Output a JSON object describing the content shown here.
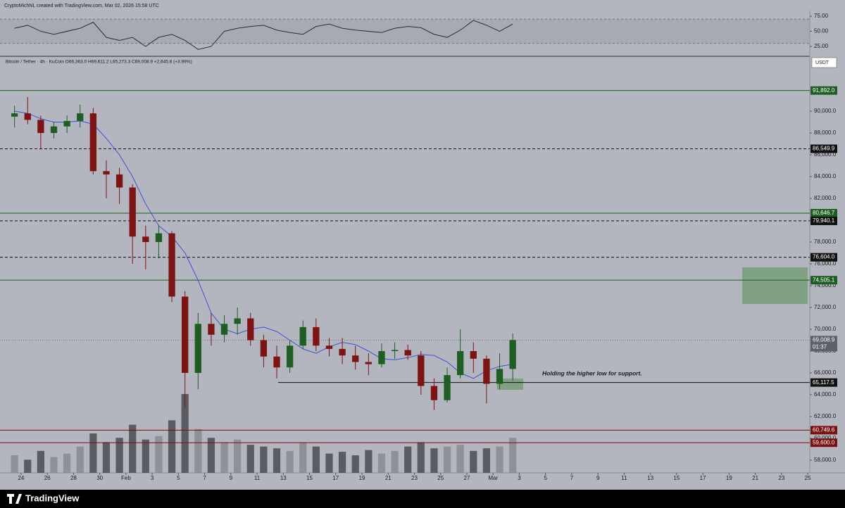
{
  "header": "CryptoMichNL created with TradingView.com, Mar 02, 2026 15:58 UTC",
  "footer": "TradingView",
  "chart_data": {
    "type": "candlestick",
    "legend": "Bitcoin / Tether · 4h · KuCoin  O66,363.0  H69,611.2  L65,273.3  C69,008.9  +2,645.8 (+3.99%)",
    "currency": "USDT",
    "annotation": "Holding the higher low for support.",
    "up_color": "#1e5e23",
    "down_color": "#7d1414",
    "x": [
      -0.5,
      0.5,
      1.5,
      2.5,
      3.5,
      4.5,
      5.5,
      6.5,
      7.5,
      8.5,
      9.5,
      10.5,
      11.5,
      12.5,
      13.5,
      14.5,
      15.5,
      16.5,
      17.5,
      18.5,
      19.5,
      20.5,
      21.5,
      22.5,
      23.5,
      24.5,
      25.5,
      26.5,
      27.5,
      28.5,
      29.5,
      30.5,
      31.5,
      32.5,
      33.5,
      34.5,
      35.5,
      36.5,
      37.5
    ],
    "open": [
      89500,
      89800,
      89200,
      88000,
      88600,
      89100,
      89800,
      84500,
      84200,
      83000,
      78500,
      78000,
      78800,
      73000,
      66000,
      70500,
      69500,
      70500,
      71000,
      69000,
      67500,
      66500,
      68500,
      70200,
      68500,
      68200,
      67600,
      67000,
      66800,
      68000,
      68100,
      67600,
      64800,
      63500,
      65800,
      68000,
      67300,
      65000,
      66363.0
    ],
    "high": [
      90500,
      91300,
      89600,
      89000,
      89600,
      90600,
      90300,
      85500,
      84800,
      83300,
      79500,
      79500,
      79000,
      73500,
      71500,
      71500,
      71300,
      72000,
      71500,
      69500,
      68500,
      69000,
      70800,
      71000,
      69200,
      69200,
      68500,
      67800,
      68700,
      68800,
      68600,
      68000,
      65500,
      66500,
      70000,
      68800,
      67600,
      67800,
      69611.2
    ],
    "low": [
      88500,
      88800,
      86500,
      87500,
      88000,
      88500,
      84200,
      82000,
      81500,
      76000,
      75500,
      76500,
      72500,
      62800,
      64500,
      68500,
      68800,
      69500,
      68500,
      66500,
      65500,
      66000,
      68200,
      68000,
      67500,
      66800,
      66300,
      65800,
      66500,
      67300,
      67200,
      64000,
      62600,
      63300,
      65500,
      66000,
      63200,
      64500,
      65273.3
    ],
    "close": [
      89800,
      89200,
      88000,
      88600,
      89100,
      89800,
      84500,
      84200,
      83000,
      78500,
      78000,
      78800,
      73000,
      66000,
      70500,
      69500,
      70500,
      71000,
      69000,
      67500,
      66500,
      68500,
      70200,
      68500,
      68200,
      67600,
      67000,
      66800,
      68000,
      68100,
      67600,
      64800,
      63500,
      65800,
      68000,
      67300,
      65000,
      66363.0,
      69008.9
    ],
    "volume": [
      20,
      15,
      25,
      18,
      22,
      30,
      45,
      35,
      40,
      55,
      38,
      42,
      60,
      90,
      50,
      40,
      35,
      38,
      32,
      30,
      28,
      25,
      35,
      30,
      22,
      24,
      20,
      26,
      22,
      25,
      30,
      35,
      28,
      30,
      32,
      25,
      28,
      30,
      40
    ],
    "volume_up_color": "#85888f",
    "volume_down_color": "#45464b",
    "ma": {
      "color": "#3f4fd6",
      "values": [
        90000,
        89800,
        89300,
        89000,
        89000,
        89100,
        88800,
        87500,
        86000,
        84000,
        81500,
        79500,
        78500,
        77000,
        74500,
        71500,
        70000,
        69600,
        70000,
        70200,
        69800,
        69000,
        68200,
        67800,
        68400,
        68800,
        68600,
        68000,
        67300,
        67200,
        67400,
        67700,
        67600,
        67000,
        66000,
        65500,
        66200,
        66600,
        66800
      ]
    },
    "rsi": {
      "color": "#1f1f23",
      "values": [
        55,
        60,
        50,
        45,
        50,
        55,
        65,
        40,
        35,
        40,
        25,
        40,
        45,
        35,
        20,
        25,
        50,
        55,
        58,
        60,
        52,
        48,
        45,
        58,
        62,
        55,
        52,
        50,
        48,
        55,
        58,
        56,
        45,
        40,
        52,
        68,
        60,
        50,
        62
      ],
      "ylim": [
        8.7,
        84.3
      ],
      "bands": [
        30,
        70
      ],
      "yticks": [
        {
          "value": 75,
          "label": "75.00"
        },
        {
          "value": 50,
          "label": "50.00"
        },
        {
          "value": 25,
          "label": "25.00"
        }
      ]
    },
    "levels": {
      "values": [
        91892.0,
        86549.9,
        80646.7,
        79940.1,
        76604.0,
        74505.1,
        65117.5,
        60749.6,
        59600.0
      ],
      "value_labels": [
        "91,892.0",
        "86,549.9",
        "80,646.7",
        "79,940.1",
        "76,604.0",
        "74,505.1",
        "65,117.5",
        "60,749.6",
        "59,600.0"
      ],
      "colors": [
        "#1f5e22",
        "#111111",
        "#1f5e22",
        "#111111",
        "#111111",
        "#1f5e22",
        "#111111",
        "#7a1010",
        "#7a1010"
      ],
      "styles": [
        "solid",
        "dashed",
        "solid",
        "dashed",
        "dashed",
        "solid",
        "solid",
        "solid",
        "solid"
      ],
      "starts": [
        null,
        null,
        null,
        null,
        null,
        null,
        19.6,
        null,
        null
      ]
    },
    "last": {
      "value": 69008.9,
      "label": "69,008.9",
      "countdown": "01:37"
    },
    "zones": [
      {
        "top": 75677,
        "bottom": 72323,
        "x0": 55.0,
        "x1": 60.0,
        "color": "#6f9a6f"
      },
      {
        "top": 65484,
        "bottom": 64452,
        "x0": 36.3,
        "x1": 38.3,
        "color": "#6f9a6f"
      }
    ],
    "xlim": [
      -1.34,
      60.05
    ],
    "ylim": [
      56839,
      95032
    ],
    "yticks": [
      {
        "value": 58000,
        "label": "58,000.0"
      },
      {
        "value": 60000,
        "label": "60,000.0"
      },
      {
        "value": 62000,
        "label": "62,000.0"
      },
      {
        "value": 64000,
        "label": "64,000.0"
      },
      {
        "value": 66000,
        "label": "66,000.0"
      },
      {
        "value": 68000,
        "label": "68,000.0"
      },
      {
        "value": 70000,
        "label": "70,000.0"
      },
      {
        "value": 72000,
        "label": "72,000.0"
      },
      {
        "value": 74000,
        "label": "74,000.0"
      },
      {
        "value": 76000,
        "label": "76,000.0"
      },
      {
        "value": 78000,
        "label": "78,000.0"
      },
      {
        "value": 80000,
        "label": "80,000.0"
      },
      {
        "value": 82000,
        "label": "82,000.0"
      },
      {
        "value": 84000,
        "label": "84,000.0"
      },
      {
        "value": 86000,
        "label": "86,000.0"
      },
      {
        "value": 88000,
        "label": "88,000.0"
      },
      {
        "value": 90000,
        "label": "90,000.0"
      }
    ],
    "xticks": [
      {
        "value": 0,
        "label": "24"
      },
      {
        "value": 2,
        "label": "26"
      },
      {
        "value": 4,
        "label": "28"
      },
      {
        "value": 6,
        "label": "30"
      },
      {
        "value": 8,
        "label": "Feb"
      },
      {
        "value": 10,
        "label": "3"
      },
      {
        "value": 12,
        "label": "5"
      },
      {
        "value": 14,
        "label": "7"
      },
      {
        "value": 16,
        "label": "9"
      },
      {
        "value": 18,
        "label": "11"
      },
      {
        "value": 20,
        "label": "13"
      },
      {
        "value": 22,
        "label": "15"
      },
      {
        "value": 24,
        "label": "17"
      },
      {
        "value": 26,
        "label": "19"
      },
      {
        "value": 28,
        "label": "21"
      },
      {
        "value": 30,
        "label": "23"
      },
      {
        "value": 32,
        "label": "25"
      },
      {
        "value": 34,
        "label": "27"
      },
      {
        "value": 36,
        "label": "Mar"
      },
      {
        "value": 38,
        "label": "3"
      },
      {
        "value": 40,
        "label": "5"
      },
      {
        "value": 42,
        "label": "7"
      },
      {
        "value": 44,
        "label": "9"
      },
      {
        "value": 46,
        "label": "11"
      },
      {
        "value": 48,
        "label": "13"
      },
      {
        "value": 50,
        "label": "15"
      },
      {
        "value": 52,
        "label": "17"
      },
      {
        "value": 54,
        "label": "19"
      },
      {
        "value": 56,
        "label": "21"
      },
      {
        "value": 58,
        "label": "23"
      },
      {
        "value": 60,
        "label": "25"
      }
    ]
  }
}
